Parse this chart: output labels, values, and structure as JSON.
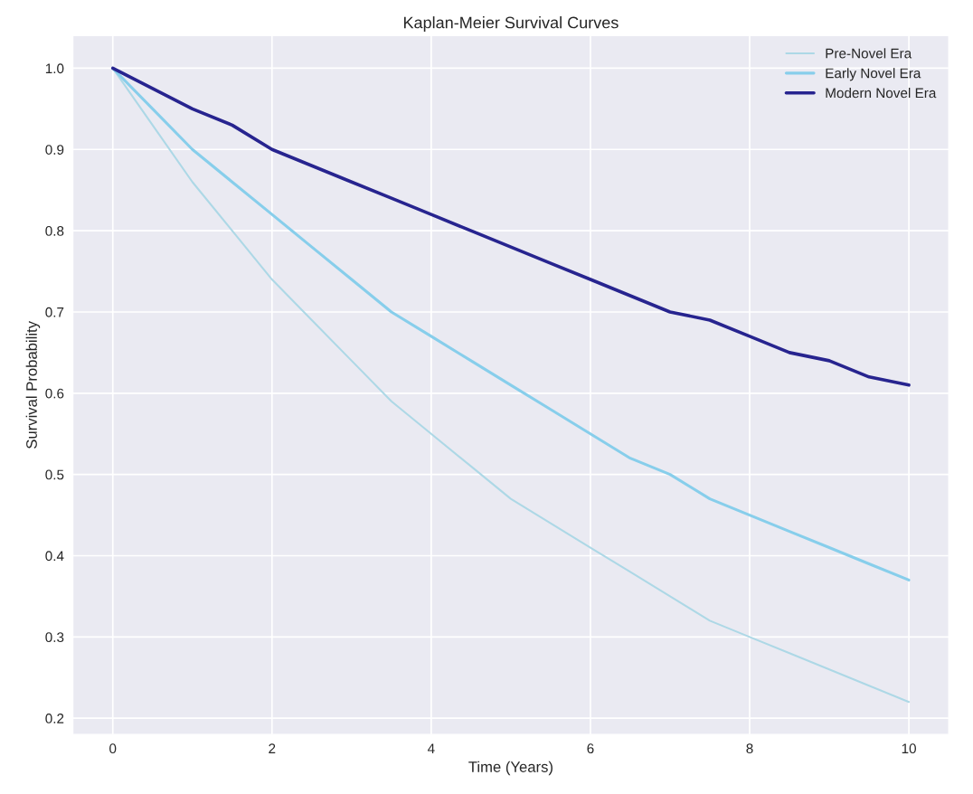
{
  "chart_data": {
    "type": "line",
    "title": "Kaplan-Meier Survival Curves",
    "xlabel": "Time (Years)",
    "ylabel": "Survival Probability",
    "x": [
      0,
      0.5,
      1,
      1.5,
      2,
      2.5,
      3,
      3.5,
      4,
      4.5,
      5,
      5.5,
      6,
      6.5,
      7,
      7.5,
      8,
      8.5,
      9,
      9.5,
      10
    ],
    "series": [
      {
        "name": "Pre-Novel Era",
        "color": "#add8e6",
        "values": [
          1.0,
          0.93,
          0.86,
          0.8,
          0.74,
          0.69,
          0.64,
          0.59,
          0.55,
          0.51,
          0.47,
          0.44,
          0.41,
          0.38,
          0.35,
          0.32,
          0.3,
          0.28,
          0.26,
          0.24,
          0.22
        ]
      },
      {
        "name": "Early Novel Era",
        "color": "#87ceeb",
        "values": [
          1.0,
          0.95,
          0.9,
          0.86,
          0.82,
          0.78,
          0.74,
          0.7,
          0.67,
          0.64,
          0.61,
          0.58,
          0.55,
          0.52,
          0.5,
          0.47,
          0.45,
          0.43,
          0.41,
          0.39,
          0.37
        ]
      },
      {
        "name": "Modern Novel Era",
        "color": "#27248f",
        "values": [
          1.0,
          0.975,
          0.95,
          0.93,
          0.9,
          0.88,
          0.86,
          0.84,
          0.82,
          0.8,
          0.78,
          0.76,
          0.74,
          0.72,
          0.7,
          0.69,
          0.67,
          0.65,
          0.64,
          0.62,
          0.61
        ]
      }
    ],
    "xlim": [
      -0.5,
      10.5
    ],
    "ylim": [
      0.18,
      1.04
    ],
    "xticks": [
      0,
      2,
      4,
      6,
      8,
      10
    ],
    "yticks": [
      {
        "value": 0.2,
        "label": "0.2"
      },
      {
        "value": 0.3,
        "label": "0.3"
      },
      {
        "value": 0.4,
        "label": "0.4"
      },
      {
        "value": 0.5,
        "label": "0.5"
      },
      {
        "value": 0.6,
        "label": "0.6"
      },
      {
        "value": 0.7,
        "label": "0.7"
      },
      {
        "value": 0.8,
        "label": "0.8"
      },
      {
        "value": 0.9,
        "label": "0.9"
      },
      {
        "value": 1,
        "label": "1.0"
      }
    ],
    "grid": true,
    "legend": "top right",
    "marker": "none",
    "line_style": "solid"
  }
}
